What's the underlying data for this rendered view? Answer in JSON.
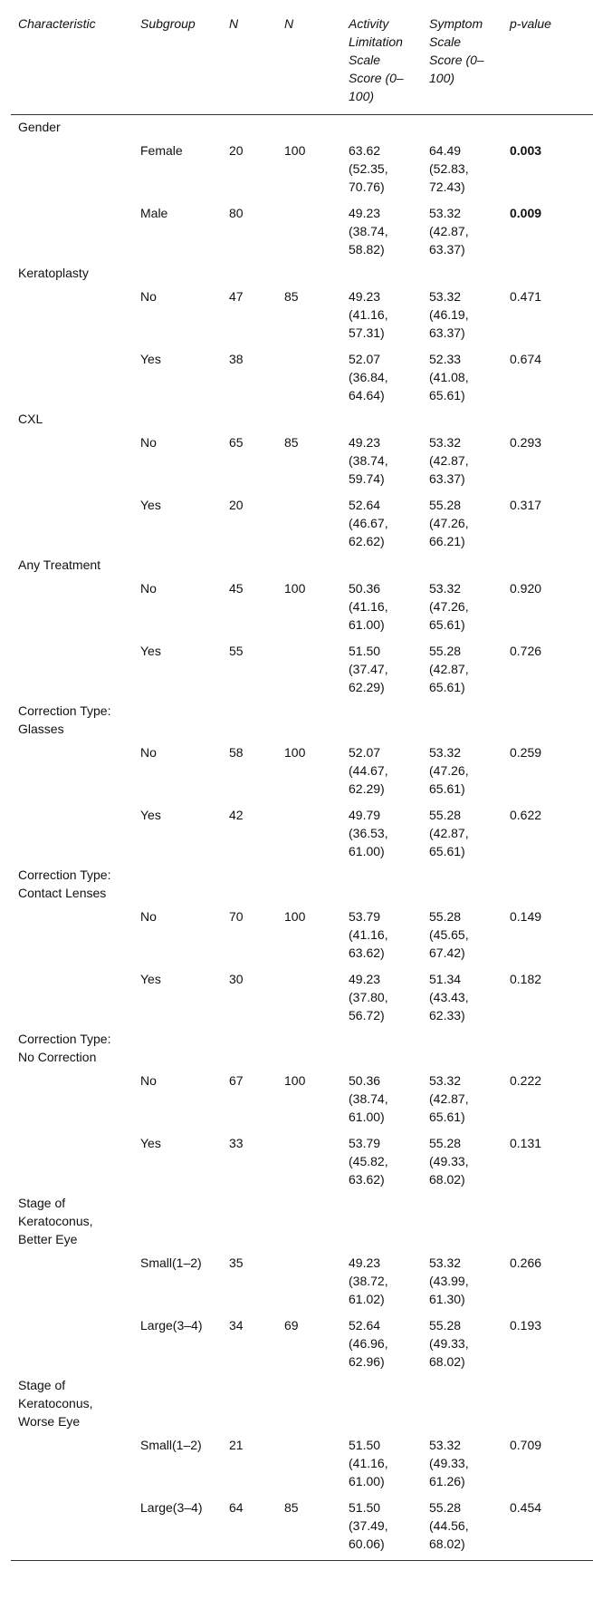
{
  "headers": {
    "characteristic": "Characteristic",
    "subgroup": "Subgroup",
    "n1": "N",
    "n2": "N",
    "activity": "Activity Limitation Scale Score (0–100)",
    "symptom": "Symptom Scale Score (0–100)",
    "pvalue": "p-value"
  },
  "groups": [
    {
      "name": "Gender",
      "rows": [
        {
          "subgroup": "Female",
          "n1": "20",
          "n2": "100",
          "activity": "63.62 (52.35, 70.76)",
          "symptom": "64.49 (52.83, 72.43)",
          "p": "0.003",
          "bold": true
        },
        {
          "subgroup": "Male",
          "n1": "80",
          "n2": "",
          "activity": "49.23 (38.74, 58.82)",
          "symptom": "53.32 (42.87, 63.37)",
          "p": "0.009",
          "bold": true
        }
      ]
    },
    {
      "name": "Keratoplasty",
      "rows": [
        {
          "subgroup": "No",
          "n1": "47",
          "n2": "85",
          "activity": "49.23 (41.16, 57.31)",
          "symptom": "53.32 (46.19, 63.37)",
          "p": "0.471",
          "bold": false
        },
        {
          "subgroup": "Yes",
          "n1": "38",
          "n2": "",
          "activity": "52.07 (36.84, 64.64)",
          "symptom": "52.33 (41.08, 65.61)",
          "p": "0.674",
          "bold": false
        }
      ]
    },
    {
      "name": "CXL",
      "rows": [
        {
          "subgroup": "No",
          "n1": "65",
          "n2": "85",
          "activity": "49.23 (38.74, 59.74)",
          "symptom": "53.32 (42.87, 63.37)",
          "p": "0.293",
          "bold": false
        },
        {
          "subgroup": "Yes",
          "n1": "20",
          "n2": "",
          "activity": "52.64 (46.67, 62.62)",
          "symptom": "55.28 (47.26, 66.21)",
          "p": "0.317",
          "bold": false
        }
      ]
    },
    {
      "name": "Any Treatment",
      "rows": [
        {
          "subgroup": "No",
          "n1": "45",
          "n2": "100",
          "activity": "50.36 (41.16, 61.00)",
          "symptom": "53.32 (47.26, 65.61)",
          "p": "0.920",
          "bold": false
        },
        {
          "subgroup": "Yes",
          "n1": "55",
          "n2": "",
          "activity": "51.50 (37.47, 62.29)",
          "symptom": "55.28 (42.87, 65.61)",
          "p": "0.726",
          "bold": false
        }
      ]
    },
    {
      "name": "Correction Type: Glasses",
      "rows": [
        {
          "subgroup": "No",
          "n1": "58",
          "n2": "100",
          "activity": "52.07 (44.67, 62.29)",
          "symptom": "53.32 (47.26, 65.61)",
          "p": "0.259",
          "bold": false
        },
        {
          "subgroup": "Yes",
          "n1": "42",
          "n2": "",
          "activity": "49.79 (36.53, 61.00)",
          "symptom": "55.28 (42.87, 65.61)",
          "p": "0.622",
          "bold": false
        }
      ]
    },
    {
      "name": "Correction Type: Contact Lenses",
      "rows": [
        {
          "subgroup": "No",
          "n1": "70",
          "n2": "100",
          "activity": "53.79 (41.16, 63.62)",
          "symptom": "55.28 (45.65, 67.42)",
          "p": "0.149",
          "bold": false
        },
        {
          "subgroup": "Yes",
          "n1": "30",
          "n2": "",
          "activity": "49.23 (37.80, 56.72)",
          "symptom": "51.34 (43.43, 62.33)",
          "p": "0.182",
          "bold": false
        }
      ]
    },
    {
      "name": "Correction Type: No Correction",
      "rows": [
        {
          "subgroup": "No",
          "n1": "67",
          "n2": "100",
          "activity": "50.36 (38.74, 61.00)",
          "symptom": "53.32 (42.87, 65.61)",
          "p": "0.222",
          "bold": false
        },
        {
          "subgroup": "Yes",
          "n1": "33",
          "n2": "",
          "activity": "53.79 (45.82, 63.62)",
          "symptom": "55.28 (49.33, 68.02)",
          "p": "0.131",
          "bold": false
        }
      ]
    },
    {
      "name": "Stage of Keratoconus, Better Eye",
      "rows": [
        {
          "subgroup": "Small(1–2)",
          "n1": "35",
          "n2": "",
          "activity": "49.23 (38.72, 61.02)",
          "symptom": "53.32 (43.99, 61.30)",
          "p": "0.266",
          "bold": false
        },
        {
          "subgroup": "Large(3–4)",
          "n1": "34",
          "n2": "69",
          "activity": "52.64 (46.96, 62.96)",
          "symptom": "55.28 (49.33, 68.02)",
          "p": "0.193",
          "bold": false
        }
      ]
    },
    {
      "name": "Stage of Keratoconus, Worse Eye",
      "rows": [
        {
          "subgroup": "Small(1–2)",
          "n1": "21",
          "n2": "",
          "activity": "51.50 (41.16, 61.00)",
          "symptom": "53.32 (49.33, 61.26)",
          "p": "0.709",
          "bold": false
        },
        {
          "subgroup": "Large(3–4)",
          "n1": "64",
          "n2": "85",
          "activity": "51.50 (37.49, 60.06)",
          "symptom": "55.28 (44.56, 68.02)",
          "p": "0.454",
          "bold": false
        }
      ]
    }
  ]
}
